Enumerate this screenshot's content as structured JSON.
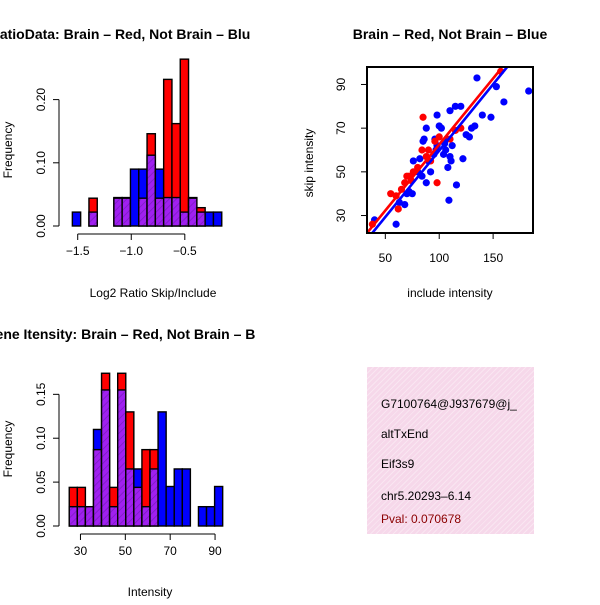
{
  "colors": {
    "red": "#ff0000",
    "blue": "#0000ff",
    "overlap": "#a020f0",
    "info_bg": "#f6d8ea",
    "pval": "#8b0000"
  },
  "chart_data": [
    {
      "id": "ratio",
      "type": "bar",
      "title": "RatioData: Brain – Red, Not Brain – Blu",
      "xlabel": "Log2 Ratio Skip/Include",
      "ylabel": "Frequency",
      "xlim": [
        -1.6,
        -0.05
      ],
      "ylim": [
        0,
        0.25
      ],
      "xticks": [
        -1.5,
        -1.0,
        -0.5
      ],
      "xtick_labels": [
        "−1.5",
        "−1.0",
        "−0.5"
      ],
      "yticks": [
        0.0,
        0.1,
        0.2
      ],
      "ytick_labels": [
        "0.00",
        "0.10",
        "0.20"
      ],
      "bin_start": -1.55,
      "bin_width": 0.0775,
      "series": [
        {
          "name": "Not Brain (blue)",
          "values": [
            0.022,
            0,
            0.022,
            0,
            0,
            0.045,
            0.045,
            0.09,
            0.09,
            0.112,
            0.09,
            0.045,
            0.045,
            0.022,
            0.045,
            0.022,
            0.022,
            0.022
          ]
        },
        {
          "name": "Brain (red)",
          "values": [
            0,
            0,
            0.044,
            0,
            0,
            0.044,
            0.044,
            0,
            0.044,
            0.146,
            0.044,
            0.232,
            0.162,
            0.264,
            0.044,
            0.029,
            0,
            0
          ]
        }
      ]
    },
    {
      "id": "scatter",
      "type": "scatter",
      "title": "Brain – Red, Not Brain – Blue",
      "xlabel": "include intensity",
      "ylabel": "skip intensity",
      "xlim": [
        33,
        187
      ],
      "ylim": [
        22,
        98
      ],
      "xticks": [
        50,
        100,
        150
      ],
      "yticks": [
        30,
        50,
        70,
        90
      ],
      "series": [
        {
          "name": "Brain (red)",
          "points": [
            [
              38,
              26
            ],
            [
              55,
              40
            ],
            [
              60,
              39
            ],
            [
              62,
              33
            ],
            [
              65,
              42
            ],
            [
              68,
              45
            ],
            [
              70,
              48
            ],
            [
              72,
              48
            ],
            [
              74,
              46
            ],
            [
              76,
              50
            ],
            [
              80,
              52
            ],
            [
              84,
              60
            ],
            [
              85,
              75
            ],
            [
              88,
              57
            ],
            [
              90,
              60
            ],
            [
              92,
              55
            ],
            [
              96,
              64
            ],
            [
              98,
              45
            ],
            [
              100,
              66
            ],
            [
              110,
              65
            ],
            [
              115,
              69
            ],
            [
              120,
              70
            ],
            [
              157,
              96
            ]
          ],
          "fit": [
            [
              33,
              22
            ],
            [
              157,
              97
            ]
          ]
        },
        {
          "name": "Not Brain (blue)",
          "points": [
            [
              40,
              28
            ],
            [
              60,
              26
            ],
            [
              63,
              36
            ],
            [
              68,
              35
            ],
            [
              70,
              40
            ],
            [
              72,
              41
            ],
            [
              75,
              40
            ],
            [
              76,
              55
            ],
            [
              80,
              50
            ],
            [
              82,
              56
            ],
            [
              84,
              48
            ],
            [
              85,
              64
            ],
            [
              86,
              65
            ],
            [
              88,
              70
            ],
            [
              88,
              45
            ],
            [
              90,
              55
            ],
            [
              92,
              50
            ],
            [
              95,
              58
            ],
            [
              96,
              65
            ],
            [
              97,
              60
            ],
            [
              98,
              76
            ],
            [
              98,
              62
            ],
            [
              100,
              71
            ],
            [
              102,
              70
            ],
            [
              104,
              58
            ],
            [
              105,
              63
            ],
            [
              106,
              60
            ],
            [
              107,
              65
            ],
            [
              108,
              52
            ],
            [
              109,
              37
            ],
            [
              110,
              57
            ],
            [
              110,
              78
            ],
            [
              111,
              55
            ],
            [
              112,
              62
            ],
            [
              115,
              80
            ],
            [
              116,
              44
            ],
            [
              120,
              80
            ],
            [
              122,
              56
            ],
            [
              125,
              67
            ],
            [
              128,
              66
            ],
            [
              130,
              70
            ],
            [
              133,
              71
            ],
            [
              135,
              93
            ],
            [
              140,
              76
            ],
            [
              148,
              75
            ],
            [
              153,
              89
            ],
            [
              160,
              82
            ],
            [
              183,
              87
            ]
          ],
          "fit": [
            [
              33,
              19
            ],
            [
              163,
              98
            ]
          ]
        }
      ]
    },
    {
      "id": "intensity",
      "type": "bar",
      "title": "Gene Itensity: Brain – Red, Not Brain – B",
      "xlabel": "Intensity",
      "ylabel": "Frequency",
      "xlim": [
        24,
        98
      ],
      "ylim": [
        0,
        0.18
      ],
      "xticks": [
        30,
        50,
        70,
        90
      ],
      "yticks": [
        0.0,
        0.05,
        0.1,
        0.15
      ],
      "ytick_labels": [
        "0.00",
        "0.05",
        "0.10",
        "0.15"
      ],
      "bin_start": 25,
      "bin_width": 3.6,
      "series": [
        {
          "name": "Not Brain (blue)",
          "values": [
            0.022,
            0.022,
            0.022,
            0.11,
            0.155,
            0.022,
            0.155,
            0.065,
            0.065,
            0.022,
            0.065,
            0.13,
            0.045,
            0.065,
            0.065,
            0,
            0.022,
            0.022,
            0.045
          ]
        },
        {
          "name": "Brain (red)",
          "values": [
            0.044,
            0.044,
            0.022,
            0.087,
            0.174,
            0.044,
            0.174,
            0.13,
            0.044,
            0.087,
            0.087,
            0,
            0,
            0,
            0,
            0,
            0,
            0,
            0
          ]
        }
      ]
    }
  ],
  "info": {
    "id": "G7100764@J937679@j_",
    "type": "altTxEnd",
    "gene": "Eif3s9",
    "location": "chr5.20293–6.14",
    "pval": "Pval: 0.070678"
  }
}
